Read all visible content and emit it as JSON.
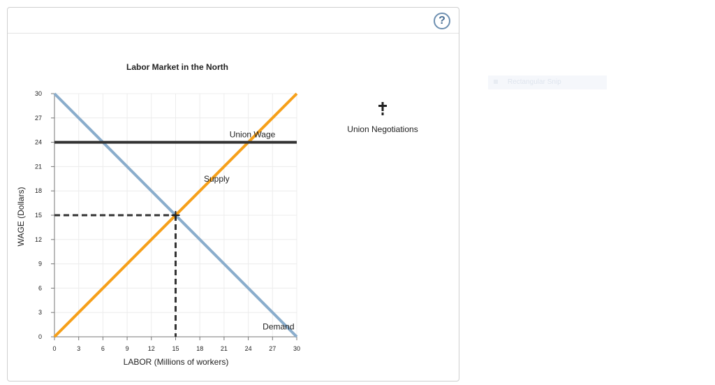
{
  "toolbar": {
    "help_label": "?"
  },
  "snip_ghost": {
    "label": "Rectangular Snip"
  },
  "legend": {
    "tool_label": "Union Negotiations"
  },
  "chart_data": {
    "type": "line",
    "title": "Labor Market in the North",
    "xlabel": "LABOR (Millions of workers)",
    "ylabel": "WAGE (Dollars)",
    "xlim": [
      0,
      30
    ],
    "ylim": [
      0,
      30
    ],
    "xticks": [
      0,
      3,
      6,
      9,
      12,
      15,
      18,
      21,
      24,
      27,
      30
    ],
    "yticks": [
      0,
      3,
      6,
      9,
      12,
      15,
      18,
      21,
      24,
      27,
      30
    ],
    "grid": true,
    "series": [
      {
        "name": "Demand",
        "color": "#8aadcc",
        "x": [
          0,
          30
        ],
        "y": [
          30,
          0
        ]
      },
      {
        "name": "Supply",
        "color": "#f6a01a",
        "x": [
          0,
          30
        ],
        "y": [
          0,
          30
        ]
      },
      {
        "name": "Union Wage",
        "color": "#333333",
        "x": [
          0,
          30
        ],
        "y": [
          24,
          24
        ]
      }
    ],
    "equilibrium": {
      "x": 15,
      "y": 15
    }
  }
}
